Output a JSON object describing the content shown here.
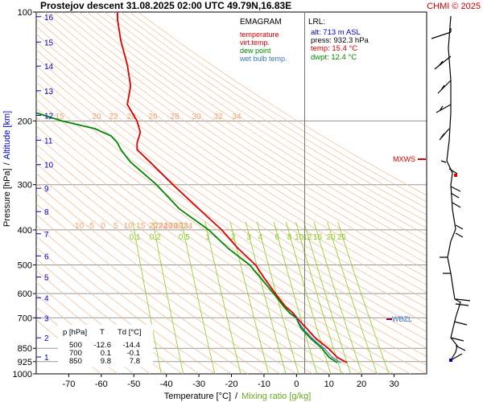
{
  "header": {
    "title": "Prostejov   descent   31.08.2025 02:00 UTC  49.79N,16.83E",
    "credit": "CHMI © 2025"
  },
  "legend": {
    "title": "EMAGRAM",
    "items": [
      {
        "label": "temperature",
        "color": "#dd0000"
      },
      {
        "label": "virt.temp.",
        "color": "#dd0000"
      },
      {
        "label": "dew point",
        "color": "#008800"
      },
      {
        "label": "wet bulb temp.",
        "color": "#3377cc"
      }
    ]
  },
  "lrl": {
    "title": "LRL:",
    "alt": "alt: 713 m ASL",
    "press": "press: 932.3 hPa",
    "temp": "temp: 15.4 °C",
    "dwpt": "dwpt: 12.4 °C",
    "colors": {
      "alt": "#0000cc",
      "press": "#000000",
      "temp": "#dd0000",
      "dwpt": "#008800"
    }
  },
  "markers": {
    "mxws": "MXWS",
    "wbzl": "WBZL"
  },
  "summary_table": {
    "headers": [
      "p [hPa]",
      "T",
      "Td [°C]"
    ],
    "rows": [
      [
        "500",
        "-12.6",
        "-14.4"
      ],
      [
        "700",
        "0.1",
        "-0.1"
      ],
      [
        "850",
        "9.8",
        "7.8"
      ]
    ]
  },
  "axes": {
    "xlabel_temp": "Temperature [°C]",
    "xlabel_sep": "/",
    "xlabel_mix": "Mixing ratio [g/kg]",
    "ylabel_press": "Pressure [hPa]",
    "ylabel_sep": "/",
    "ylabel_alt": "Altitude [km]"
  },
  "chart_data": {
    "type": "line",
    "x_axis": {
      "min": -80,
      "max": 40,
      "ticks": [
        -70,
        -60,
        -50,
        -40,
        -30,
        -20,
        -10,
        0,
        10,
        20,
        30
      ]
    },
    "y_axis": {
      "scale": "log",
      "min": 100,
      "max": 1000,
      "ticks": [
        100,
        200,
        300,
        400,
        500,
        600,
        700,
        850,
        925,
        1000
      ]
    },
    "altitude_ticks_km": [
      1,
      2,
      3,
      4,
      5,
      6,
      7,
      8,
      9,
      10,
      11,
      12,
      13,
      14,
      15,
      16
    ],
    "altitude_pressure_hpa": [
      898,
      795,
      701,
      616,
      540,
      472,
      410,
      356,
      307,
      264,
      226,
      193,
      165,
      141,
      121,
      103
    ],
    "mixing_ratio_labels": [
      "0.1",
      "0.2",
      "0.5",
      "1",
      "2",
      "3",
      "4",
      "6",
      "8",
      "10",
      "12",
      "15",
      "20",
      "25"
    ],
    "mixing_ratio_values": [
      0.1,
      0.2,
      0.5,
      1,
      2,
      3,
      4,
      6,
      8,
      10,
      12,
      15,
      20,
      25
    ],
    "dry_adiabat_labels": [
      "-10",
      "-5",
      "0",
      "5",
      "10",
      "15",
      "20",
      "22",
      "24",
      "26",
      "28",
      "30",
      "32",
      "34"
    ],
    "series": [
      {
        "name": "temperature",
        "color": "#dd0000",
        "points": [
          [
            930,
            15.4
          ],
          [
            900,
            12.5
          ],
          [
            850,
            9.8
          ],
          [
            800,
            6
          ],
          [
            750,
            3.2
          ],
          [
            700,
            0.1
          ],
          [
            680,
            -1
          ],
          [
            650,
            -3.5
          ],
          [
            600,
            -6.5
          ],
          [
            550,
            -9.5
          ],
          [
            500,
            -12.6
          ],
          [
            450,
            -18
          ],
          [
            400,
            -23
          ],
          [
            350,
            -30
          ],
          [
            300,
            -38
          ],
          [
            260,
            -45
          ],
          [
            240,
            -49
          ],
          [
            230,
            -49
          ],
          [
            215,
            -48
          ],
          [
            200,
            -49
          ],
          [
            180,
            -52
          ],
          [
            160,
            -51
          ],
          [
            140,
            -52
          ],
          [
            120,
            -54
          ],
          [
            105,
            -55
          ],
          [
            100,
            -55
          ]
        ]
      },
      {
        "name": "dew point",
        "color": "#008800",
        "points": [
          [
            930,
            12.4
          ],
          [
            900,
            10
          ],
          [
            850,
            7.8
          ],
          [
            800,
            4.5
          ],
          [
            750,
            1.5
          ],
          [
            720,
            0.5
          ],
          [
            700,
            -0.1
          ],
          [
            680,
            -2
          ],
          [
            650,
            -4
          ],
          [
            600,
            -7
          ],
          [
            550,
            -10.5
          ],
          [
            500,
            -14.4
          ],
          [
            450,
            -21
          ],
          [
            400,
            -27
          ],
          [
            350,
            -36
          ],
          [
            300,
            -43
          ],
          [
            260,
            -51
          ],
          [
            240,
            -54
          ],
          [
            230,
            -55
          ],
          [
            220,
            -57
          ],
          [
            210,
            -62
          ],
          [
            200,
            -72
          ],
          [
            190,
            -80
          ]
        ]
      },
      {
        "name": "wet bulb temp.",
        "color": "#3377cc",
        "points": [
          [
            930,
            13.4
          ],
          [
            900,
            11
          ],
          [
            850,
            8.5
          ],
          [
            800,
            5
          ],
          [
            750,
            2
          ],
          [
            700,
            -0.1
          ]
        ]
      }
    ]
  }
}
